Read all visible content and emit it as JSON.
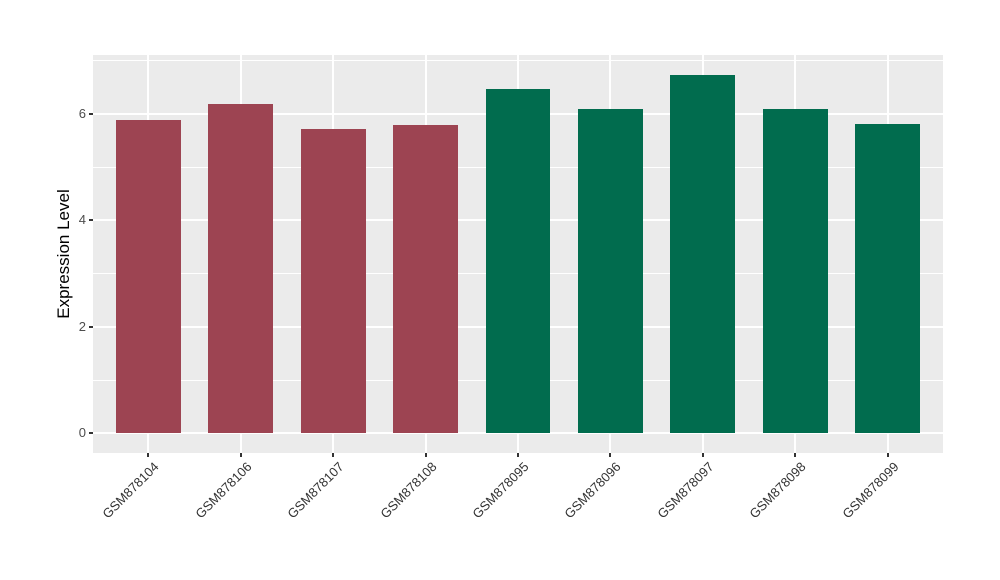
{
  "chart_data": {
    "type": "bar",
    "title": "",
    "xlabel": "",
    "ylabel": "Expression Level",
    "categories": [
      "GSM878104",
      "GSM878106",
      "GSM878107",
      "GSM878108",
      "GSM878095",
      "GSM878096",
      "GSM878097",
      "GSM878098",
      "GSM878099"
    ],
    "values": [
      5.88,
      6.19,
      5.71,
      5.8,
      6.47,
      6.1,
      6.74,
      6.1,
      5.82
    ],
    "bar_colors": [
      "#9D4452",
      "#9D4452",
      "#9D4452",
      "#9D4452",
      "#016C4E",
      "#016C4E",
      "#016C4E",
      "#016C4E",
      "#016C4E"
    ],
    "yticks": [
      0,
      2,
      4,
      6
    ],
    "ytick_labels": [
      "0",
      "2",
      "4",
      "6"
    ],
    "yticks_minor": [
      1,
      3,
      5,
      7
    ],
    "ylim": [
      -0.37,
      7.11
    ],
    "grid": "on",
    "legend_position": "none",
    "colors": {
      "panel_bg": "#EBEBEB",
      "gridline": "#FFFFFF",
      "tick_mark": "#333333",
      "tick_label": "#4D4D4D",
      "axis_title": "#000000",
      "group_left_bars": "#9D4452",
      "group_right_bars": "#016C4E"
    }
  }
}
